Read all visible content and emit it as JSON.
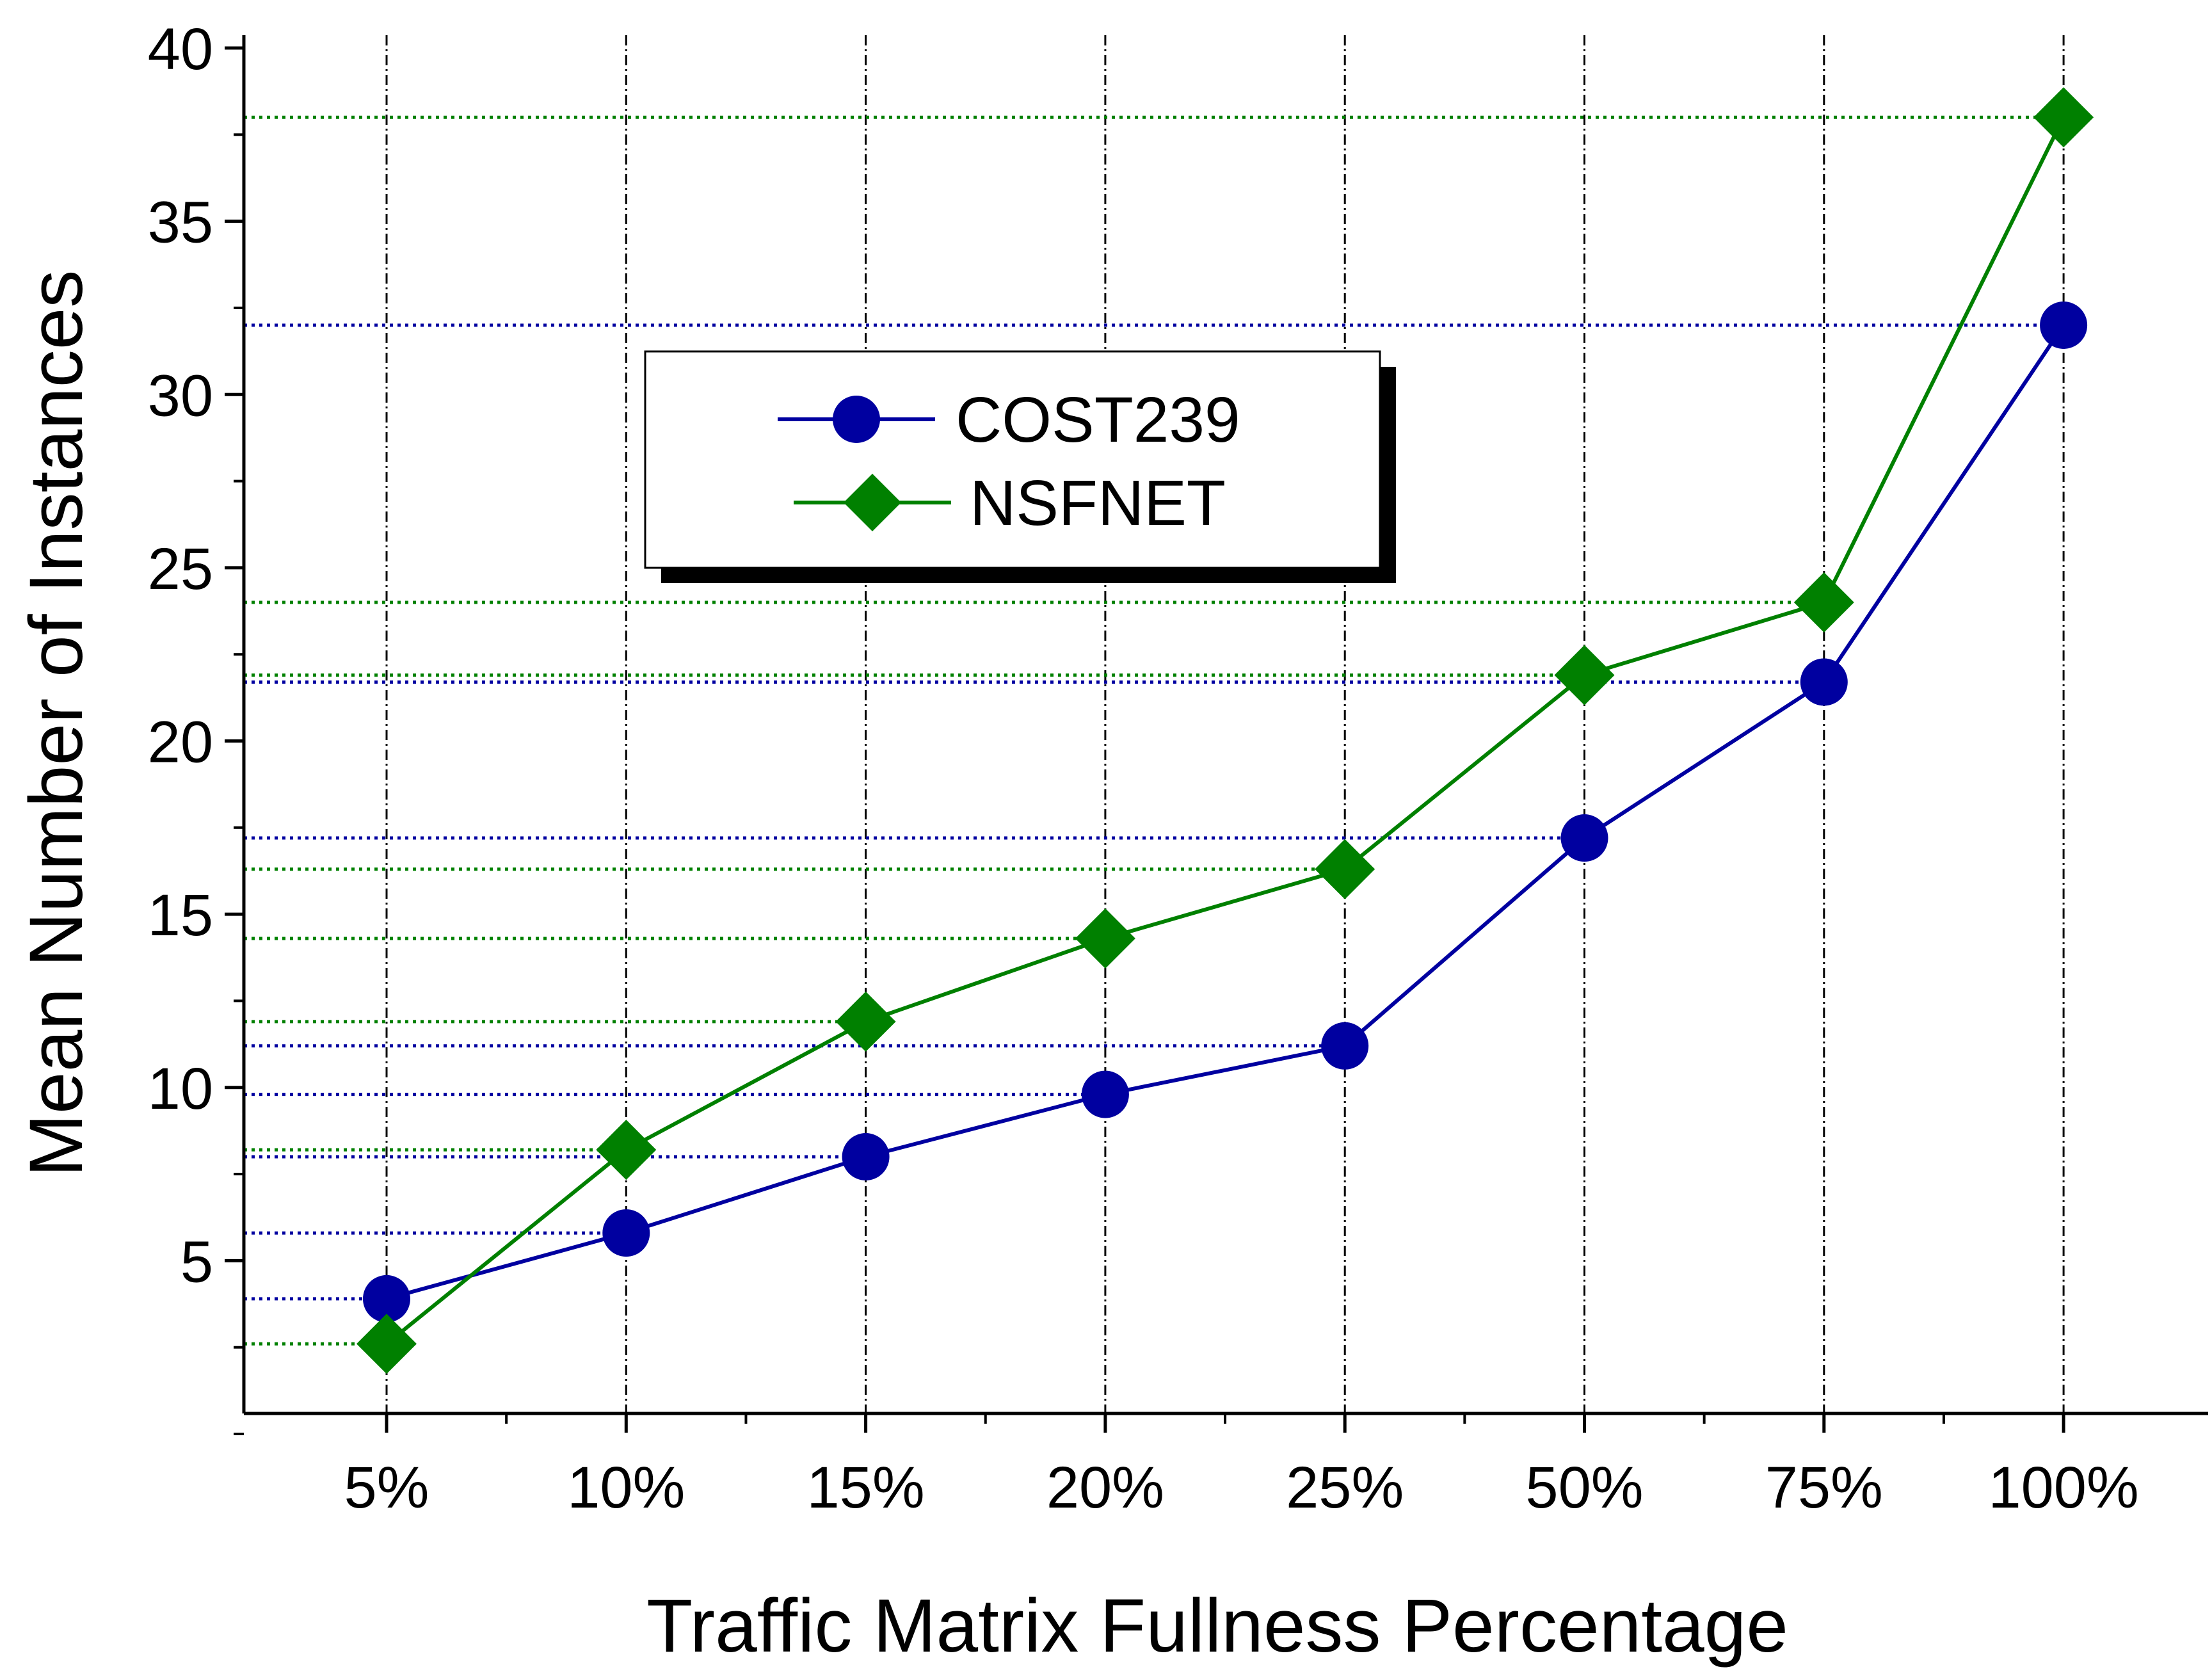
{
  "chart_data": {
    "type": "line",
    "categories": [
      "5%",
      "10%",
      "15%",
      "20%",
      "25%",
      "50%",
      "75%",
      "100%"
    ],
    "xlabel": "Traffic Matrix Fullness Percentage",
    "ylabel": "Mean Number of Instances",
    "ylim": [
      0,
      40
    ],
    "yticks": [
      5,
      10,
      15,
      20,
      25,
      30,
      35,
      40
    ],
    "ytick_labels": [
      "5",
      "10",
      "15",
      "20",
      "25",
      "30",
      "35",
      "40"
    ],
    "grid": "vertical dashed lines at each category; dotted horizontal guide lines from the y-axis to each data point",
    "legend": {
      "placement": "upper-left-center",
      "entries": [
        "COST239",
        "NSFNET"
      ]
    },
    "series": [
      {
        "name": "COST239",
        "marker": "circle",
        "color": "#0000a0",
        "values": [
          3.9,
          5.8,
          8.0,
          9.8,
          11.2,
          17.2,
          21.7,
          32.0
        ]
      },
      {
        "name": "NSFNET",
        "marker": "diamond",
        "color": "#008000",
        "values": [
          2.6,
          8.2,
          11.9,
          14.3,
          16.3,
          21.9,
          24.0,
          38.0
        ]
      }
    ]
  }
}
